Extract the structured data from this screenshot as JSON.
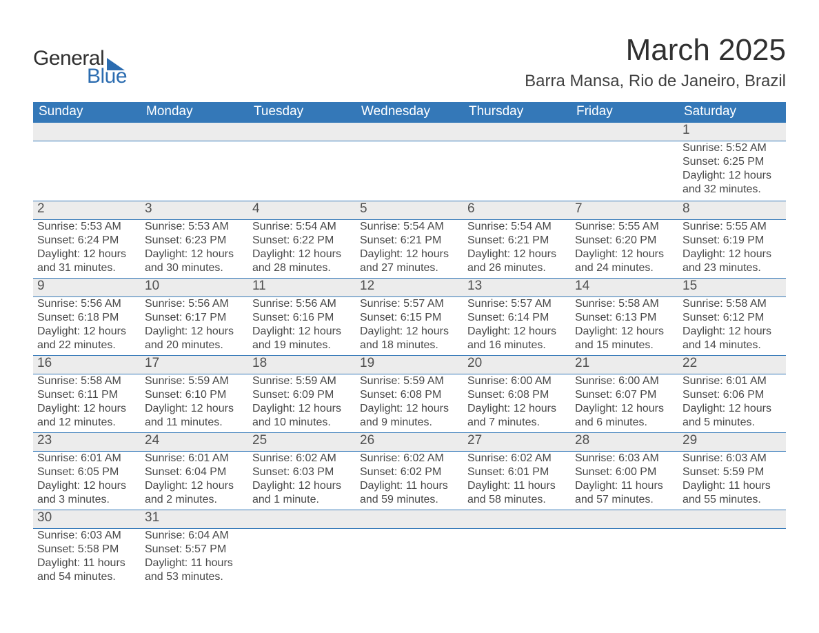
{
  "logo": {
    "line1": "General",
    "line2": "Blue",
    "triangle_color": "#2b6cb0"
  },
  "title": {
    "month": "March 2025",
    "location": "Barra Mansa, Rio de Janeiro, Brazil"
  },
  "colors": {
    "header_bg": "#3478b8",
    "header_fg": "#ffffff",
    "daynum_bg": "#ececec",
    "border": "#3478b8",
    "text": "#484848",
    "background": "#ffffff"
  },
  "fonts": {
    "title_month_pt": 44,
    "title_loc_pt": 24,
    "weekday_pt": 19,
    "daynum_pt": 19,
    "body_pt": 16
  },
  "weekdays": [
    "Sunday",
    "Monday",
    "Tuesday",
    "Wednesday",
    "Thursday",
    "Friday",
    "Saturday"
  ],
  "weeks": [
    [
      null,
      null,
      null,
      null,
      null,
      null,
      {
        "day": "1",
        "sunrise": "Sunrise: 5:52 AM",
        "sunset": "Sunset: 6:25 PM",
        "daylight": "Daylight: 12 hours and 32 minutes."
      }
    ],
    [
      {
        "day": "2",
        "sunrise": "Sunrise: 5:53 AM",
        "sunset": "Sunset: 6:24 PM",
        "daylight": "Daylight: 12 hours and 31 minutes."
      },
      {
        "day": "3",
        "sunrise": "Sunrise: 5:53 AM",
        "sunset": "Sunset: 6:23 PM",
        "daylight": "Daylight: 12 hours and 30 minutes."
      },
      {
        "day": "4",
        "sunrise": "Sunrise: 5:54 AM",
        "sunset": "Sunset: 6:22 PM",
        "daylight": "Daylight: 12 hours and 28 minutes."
      },
      {
        "day": "5",
        "sunrise": "Sunrise: 5:54 AM",
        "sunset": "Sunset: 6:21 PM",
        "daylight": "Daylight: 12 hours and 27 minutes."
      },
      {
        "day": "6",
        "sunrise": "Sunrise: 5:54 AM",
        "sunset": "Sunset: 6:21 PM",
        "daylight": "Daylight: 12 hours and 26 minutes."
      },
      {
        "day": "7",
        "sunrise": "Sunrise: 5:55 AM",
        "sunset": "Sunset: 6:20 PM",
        "daylight": "Daylight: 12 hours and 24 minutes."
      },
      {
        "day": "8",
        "sunrise": "Sunrise: 5:55 AM",
        "sunset": "Sunset: 6:19 PM",
        "daylight": "Daylight: 12 hours and 23 minutes."
      }
    ],
    [
      {
        "day": "9",
        "sunrise": "Sunrise: 5:56 AM",
        "sunset": "Sunset: 6:18 PM",
        "daylight": "Daylight: 12 hours and 22 minutes."
      },
      {
        "day": "10",
        "sunrise": "Sunrise: 5:56 AM",
        "sunset": "Sunset: 6:17 PM",
        "daylight": "Daylight: 12 hours and 20 minutes."
      },
      {
        "day": "11",
        "sunrise": "Sunrise: 5:56 AM",
        "sunset": "Sunset: 6:16 PM",
        "daylight": "Daylight: 12 hours and 19 minutes."
      },
      {
        "day": "12",
        "sunrise": "Sunrise: 5:57 AM",
        "sunset": "Sunset: 6:15 PM",
        "daylight": "Daylight: 12 hours and 18 minutes."
      },
      {
        "day": "13",
        "sunrise": "Sunrise: 5:57 AM",
        "sunset": "Sunset: 6:14 PM",
        "daylight": "Daylight: 12 hours and 16 minutes."
      },
      {
        "day": "14",
        "sunrise": "Sunrise: 5:58 AM",
        "sunset": "Sunset: 6:13 PM",
        "daylight": "Daylight: 12 hours and 15 minutes."
      },
      {
        "day": "15",
        "sunrise": "Sunrise: 5:58 AM",
        "sunset": "Sunset: 6:12 PM",
        "daylight": "Daylight: 12 hours and 14 minutes."
      }
    ],
    [
      {
        "day": "16",
        "sunrise": "Sunrise: 5:58 AM",
        "sunset": "Sunset: 6:11 PM",
        "daylight": "Daylight: 12 hours and 12 minutes."
      },
      {
        "day": "17",
        "sunrise": "Sunrise: 5:59 AM",
        "sunset": "Sunset: 6:10 PM",
        "daylight": "Daylight: 12 hours and 11 minutes."
      },
      {
        "day": "18",
        "sunrise": "Sunrise: 5:59 AM",
        "sunset": "Sunset: 6:09 PM",
        "daylight": "Daylight: 12 hours and 10 minutes."
      },
      {
        "day": "19",
        "sunrise": "Sunrise: 5:59 AM",
        "sunset": "Sunset: 6:08 PM",
        "daylight": "Daylight: 12 hours and 9 minutes."
      },
      {
        "day": "20",
        "sunrise": "Sunrise: 6:00 AM",
        "sunset": "Sunset: 6:08 PM",
        "daylight": "Daylight: 12 hours and 7 minutes."
      },
      {
        "day": "21",
        "sunrise": "Sunrise: 6:00 AM",
        "sunset": "Sunset: 6:07 PM",
        "daylight": "Daylight: 12 hours and 6 minutes."
      },
      {
        "day": "22",
        "sunrise": "Sunrise: 6:01 AM",
        "sunset": "Sunset: 6:06 PM",
        "daylight": "Daylight: 12 hours and 5 minutes."
      }
    ],
    [
      {
        "day": "23",
        "sunrise": "Sunrise: 6:01 AM",
        "sunset": "Sunset: 6:05 PM",
        "daylight": "Daylight: 12 hours and 3 minutes."
      },
      {
        "day": "24",
        "sunrise": "Sunrise: 6:01 AM",
        "sunset": "Sunset: 6:04 PM",
        "daylight": "Daylight: 12 hours and 2 minutes."
      },
      {
        "day": "25",
        "sunrise": "Sunrise: 6:02 AM",
        "sunset": "Sunset: 6:03 PM",
        "daylight": "Daylight: 12 hours and 1 minute."
      },
      {
        "day": "26",
        "sunrise": "Sunrise: 6:02 AM",
        "sunset": "Sunset: 6:02 PM",
        "daylight": "Daylight: 11 hours and 59 minutes."
      },
      {
        "day": "27",
        "sunrise": "Sunrise: 6:02 AM",
        "sunset": "Sunset: 6:01 PM",
        "daylight": "Daylight: 11 hours and 58 minutes."
      },
      {
        "day": "28",
        "sunrise": "Sunrise: 6:03 AM",
        "sunset": "Sunset: 6:00 PM",
        "daylight": "Daylight: 11 hours and 57 minutes."
      },
      {
        "day": "29",
        "sunrise": "Sunrise: 6:03 AM",
        "sunset": "Sunset: 5:59 PM",
        "daylight": "Daylight: 11 hours and 55 minutes."
      }
    ],
    [
      {
        "day": "30",
        "sunrise": "Sunrise: 6:03 AM",
        "sunset": "Sunset: 5:58 PM",
        "daylight": "Daylight: 11 hours and 54 minutes."
      },
      {
        "day": "31",
        "sunrise": "Sunrise: 6:04 AM",
        "sunset": "Sunset: 5:57 PM",
        "daylight": "Daylight: 11 hours and 53 minutes."
      },
      null,
      null,
      null,
      null,
      null
    ]
  ]
}
